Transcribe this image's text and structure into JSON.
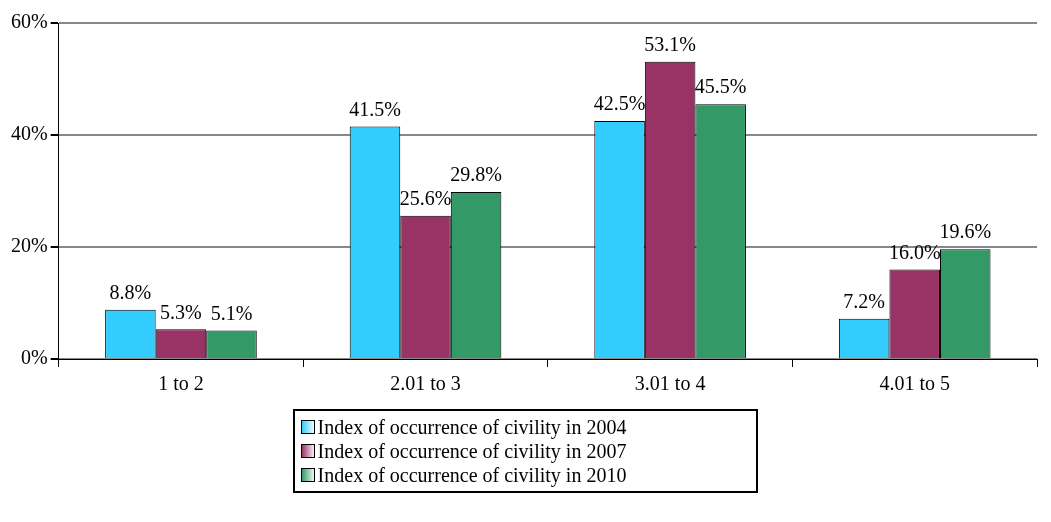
{
  "chart_data": {
    "type": "bar",
    "categories": [
      "1 to 2",
      "2.01 to 3",
      "3.01 to 4",
      "4.01 to 5"
    ],
    "series": [
      {
        "name": "Index of occurrence of civility in 2004",
        "color": "#33ccff",
        "values": [
          8.8,
          41.5,
          42.5,
          7.2
        ]
      },
      {
        "name": "Index of occurrence of civility in 2007",
        "color": "#993366",
        "values": [
          5.3,
          25.6,
          53.1,
          16.0
        ]
      },
      {
        "name": "Index of occurrence of civility in 2010",
        "color": "#339966",
        "values": [
          5.1,
          29.8,
          45.5,
          19.6
        ]
      }
    ],
    "value_labels": [
      [
        "8.8%",
        "41.5%",
        "42.5%",
        "7.2%"
      ],
      [
        "5.3%",
        "25.6%",
        "53.1%",
        "16.0%"
      ],
      [
        "5.1%",
        "29.8%",
        "45.5%",
        "19.6%"
      ]
    ],
    "ylim": [
      0,
      60
    ],
    "yticks": [
      {
        "value": 0,
        "label": "0%"
      },
      {
        "value": 20,
        "label": "20%"
      },
      {
        "value": 40,
        "label": "40%"
      },
      {
        "value": 60,
        "label": "60%"
      }
    ],
    "grid": "y",
    "legend": "bottom"
  }
}
